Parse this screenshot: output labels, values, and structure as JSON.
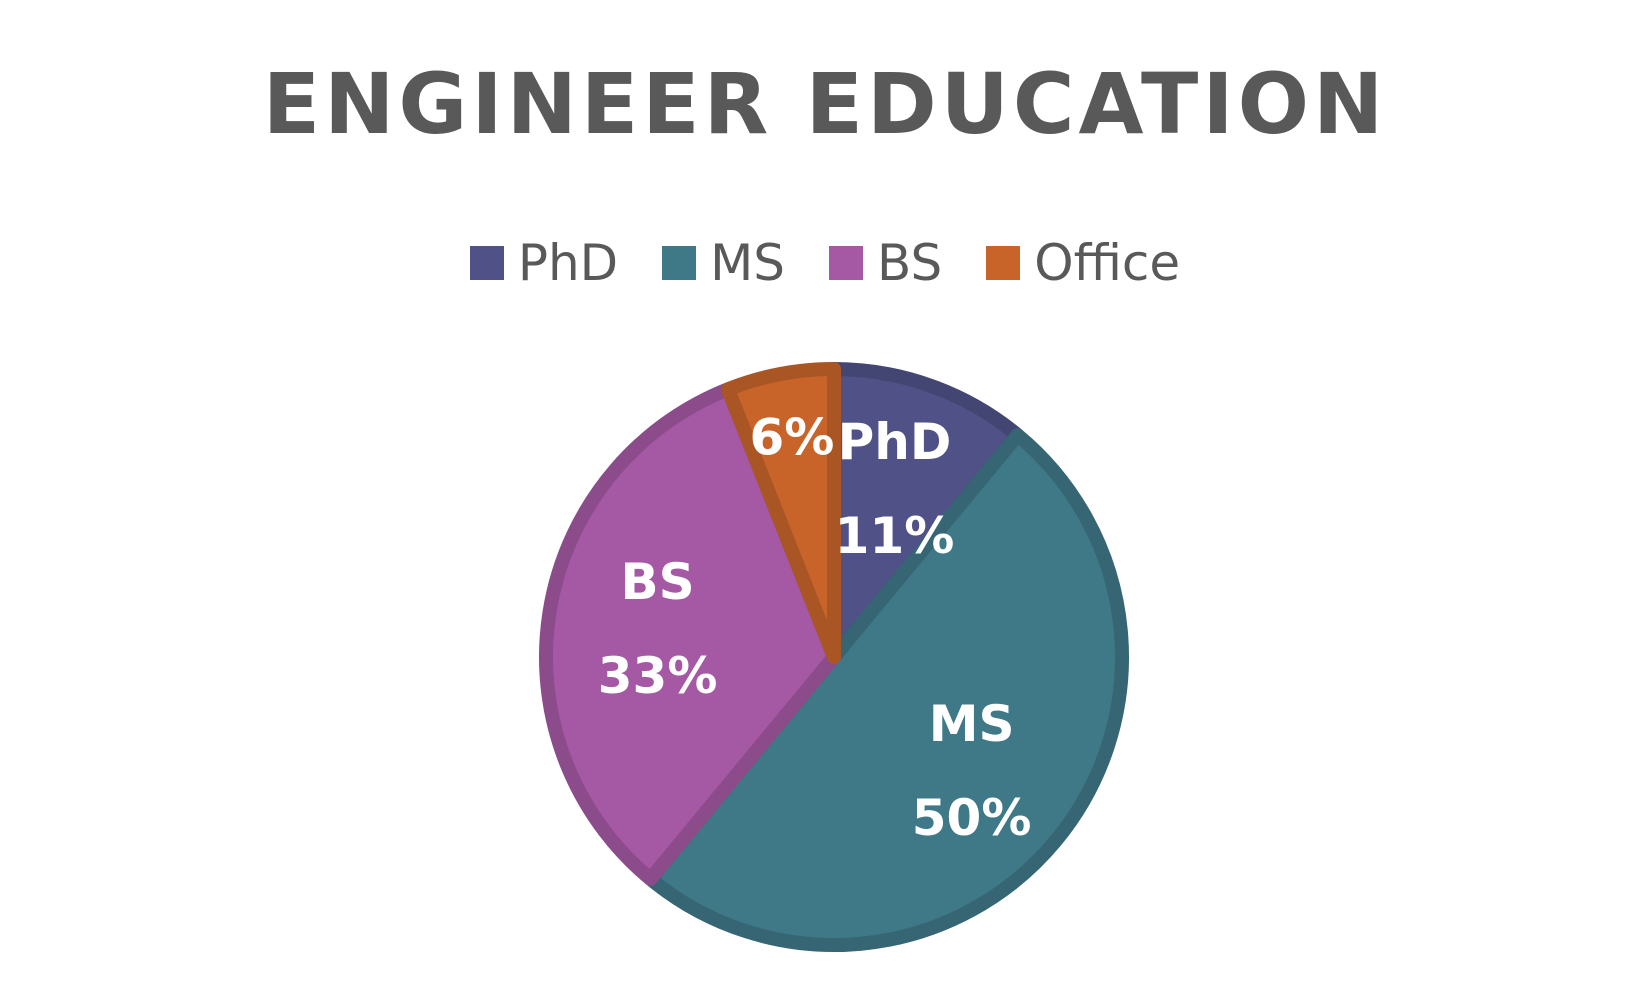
{
  "chart_data": {
    "type": "pie",
    "title": "ENGINEER EDUCATION",
    "categories": [
      "PhD",
      "MS",
      "BS",
      "Office"
    ],
    "values": [
      11,
      50,
      33,
      6
    ],
    "value_labels": [
      "11%",
      "50%",
      "33%",
      "6%"
    ],
    "colors": [
      "#4f5187",
      "#3f7887",
      "#a558a3",
      "#c8642a"
    ],
    "legend_position": "top",
    "slice_labels": "category name and percent inside each slice; Office slice shows percent only"
  }
}
